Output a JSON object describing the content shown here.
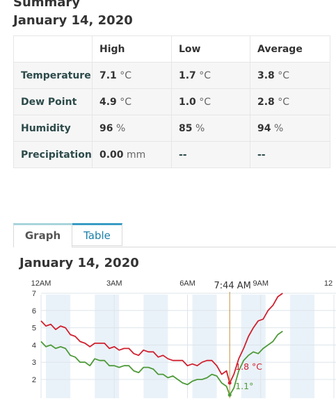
{
  "summary": {
    "heading": "Summary",
    "date": "January 14, 2020",
    "columns": [
      "",
      "High",
      "Low",
      "Average"
    ],
    "rows": [
      {
        "label": "Temperature",
        "cells": [
          {
            "value": "7.1",
            "unit": "°C"
          },
          {
            "value": "1.7",
            "unit": "°C"
          },
          {
            "value": "3.8",
            "unit": "°C"
          }
        ]
      },
      {
        "label": "Dew Point",
        "cells": [
          {
            "value": "4.9",
            "unit": "°C"
          },
          {
            "value": "1.0",
            "unit": "°C"
          },
          {
            "value": "2.8",
            "unit": "°C"
          }
        ]
      },
      {
        "label": "Humidity",
        "cells": [
          {
            "value": "96",
            "unit": "%"
          },
          {
            "value": "85",
            "unit": "%"
          },
          {
            "value": "94",
            "unit": "%"
          }
        ]
      },
      {
        "label": "Precipitation",
        "cells": [
          {
            "value": "0.00",
            "unit": "mm"
          },
          {
            "value": "--",
            "unit": ""
          },
          {
            "value": "--",
            "unit": ""
          }
        ]
      }
    ]
  },
  "tabs": [
    {
      "label": "Graph",
      "active": true
    },
    {
      "label": "Table",
      "active": false
    }
  ],
  "chart_date": "January 14, 2020",
  "chart_data": {
    "type": "line",
    "title": "",
    "x_ticks": [
      "12AM",
      "3AM",
      "6AM",
      "9AM",
      "12"
    ],
    "x_tick_hours": [
      0,
      3,
      6,
      9,
      12
    ],
    "xlim": [
      0,
      12
    ],
    "ylim": [
      1,
      7
    ],
    "y_ticks": [
      2,
      3,
      4,
      5,
      6,
      7
    ],
    "grid": true,
    "colors": {
      "temperature": "#d1202f",
      "dew_point": "#4e9a3a",
      "cursor": "#c8903a",
      "band": "#eaf2f9"
    },
    "cursor": {
      "time": "7:44 AM",
      "hour": 7.73,
      "temperature_label": "1.8 °C",
      "dew_point_label": "1.1°"
    },
    "series": [
      {
        "name": "Temperature",
        "x": [
          0,
          0.2,
          0.4,
          0.6,
          0.8,
          1.0,
          1.2,
          1.4,
          1.6,
          1.8,
          2.0,
          2.2,
          2.4,
          2.6,
          2.8,
          3.0,
          3.2,
          3.4,
          3.6,
          3.8,
          4.0,
          4.2,
          4.4,
          4.6,
          4.8,
          5.0,
          5.2,
          5.4,
          5.6,
          5.8,
          6.0,
          6.2,
          6.4,
          6.6,
          6.8,
          7.0,
          7.2,
          7.4,
          7.6,
          7.73,
          7.9,
          8.1,
          8.3,
          8.5,
          8.7,
          8.9,
          9.1,
          9.3,
          9.5,
          9.7,
          9.9
        ],
        "values": [
          5.4,
          5.1,
          5.2,
          4.9,
          5.1,
          5.0,
          4.6,
          4.5,
          4.2,
          4.1,
          3.9,
          4.1,
          4.1,
          4.1,
          3.8,
          3.9,
          3.7,
          3.8,
          3.8,
          3.5,
          3.4,
          3.7,
          3.6,
          3.6,
          3.3,
          3.4,
          3.2,
          3.1,
          3.1,
          3.1,
          2.8,
          2.9,
          2.8,
          3.0,
          3.1,
          3.1,
          2.8,
          2.3,
          2.5,
          1.8,
          2.3,
          3.2,
          3.8,
          4.5,
          5.0,
          5.4,
          5.5,
          6.0,
          6.3,
          6.8,
          7.0
        ]
      },
      {
        "name": "Dew Point",
        "x": [
          0,
          0.2,
          0.4,
          0.6,
          0.8,
          1.0,
          1.2,
          1.4,
          1.6,
          1.8,
          2.0,
          2.2,
          2.4,
          2.6,
          2.8,
          3.0,
          3.2,
          3.4,
          3.6,
          3.8,
          4.0,
          4.2,
          4.4,
          4.6,
          4.8,
          5.0,
          5.2,
          5.4,
          5.6,
          5.8,
          6.0,
          6.2,
          6.4,
          6.6,
          6.8,
          7.0,
          7.2,
          7.4,
          7.6,
          7.73,
          7.9,
          8.1,
          8.3,
          8.5,
          8.7,
          8.9,
          9.1,
          9.3,
          9.5,
          9.7,
          9.9
        ],
        "values": [
          4.2,
          3.9,
          4.0,
          3.8,
          3.9,
          3.8,
          3.4,
          3.3,
          3.0,
          3.0,
          2.8,
          3.2,
          3.1,
          3.1,
          2.8,
          2.8,
          2.7,
          2.8,
          2.8,
          2.5,
          2.4,
          2.7,
          2.7,
          2.6,
          2.3,
          2.3,
          2.1,
          2.2,
          2.0,
          1.8,
          1.7,
          1.9,
          2.0,
          2.0,
          2.1,
          2.3,
          2.2,
          1.8,
          1.6,
          1.1,
          1.5,
          2.5,
          3.1,
          3.4,
          3.6,
          3.5,
          3.8,
          4.0,
          4.2,
          4.6,
          4.8
        ]
      }
    ]
  }
}
